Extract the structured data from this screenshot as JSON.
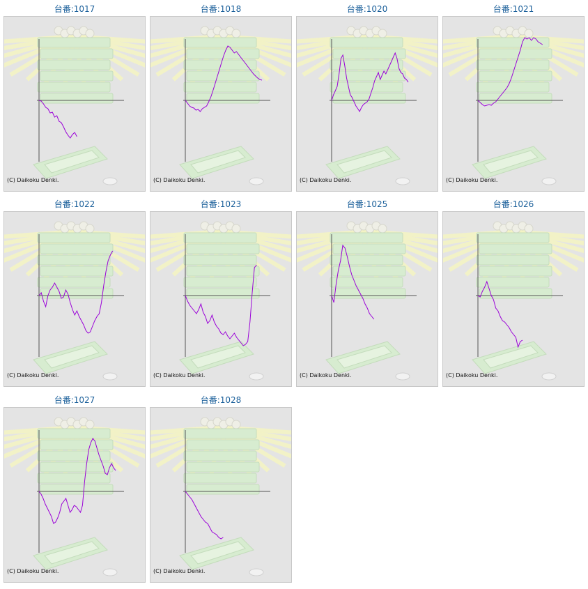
{
  "copyright": "(C) Daikoku Denki.",
  "colors": {
    "title": "#1a5f9a",
    "line": "#9a00d8",
    "axis": "#555555",
    "background": "#e4e4e4",
    "machine": "#d7ecd0",
    "rays": "#f4f4c4"
  },
  "chart_data": [
    {
      "type": "line",
      "title": "台番:1017",
      "values": [
        0,
        -1,
        -5,
        -10,
        -12,
        -18,
        -17,
        -24,
        -22,
        -30,
        -32,
        -38,
        -45,
        -50,
        -54,
        -49,
        -46,
        -52
      ]
    },
    {
      "type": "line",
      "title": "台番:1018",
      "values": [
        0,
        -4,
        -8,
        -10,
        -11,
        -14,
        -13,
        -16,
        -12,
        -10,
        -8,
        -2,
        5,
        14,
        24,
        34,
        44,
        54,
        64,
        72,
        78,
        76,
        72,
        68,
        70,
        66,
        62,
        58,
        54,
        50,
        46,
        42,
        38,
        35,
        32,
        30,
        29
      ]
    },
    {
      "type": "line",
      "title": "台番:1020",
      "values": [
        0,
        8,
        14,
        20,
        38,
        60,
        65,
        50,
        32,
        20,
        8,
        4,
        -2,
        -8,
        -12,
        -16,
        -10,
        -6,
        -4,
        -2,
        2,
        10,
        18,
        28,
        34,
        40,
        30,
        36,
        42,
        38,
        44,
        50,
        56,
        62,
        68,
        60,
        46,
        40,
        38,
        32,
        30,
        26
      ]
    },
    {
      "type": "line",
      "title": "台番:1021",
      "values": [
        0,
        -3,
        -6,
        -8,
        -7,
        -6,
        -7,
        -4,
        -2,
        2,
        6,
        10,
        14,
        18,
        24,
        32,
        42,
        52,
        62,
        72,
        84,
        90,
        88,
        90,
        86,
        90,
        88,
        84,
        82,
        80
      ]
    },
    {
      "type": "line",
      "title": "台番:1022",
      "values": [
        0,
        4,
        -8,
        -16,
        0,
        8,
        12,
        18,
        12,
        6,
        -4,
        -2,
        8,
        2,
        -10,
        -20,
        -28,
        -22,
        -30,
        -36,
        -42,
        -50,
        -54,
        -52,
        -44,
        -36,
        -30,
        -26,
        -10,
        14,
        34,
        50,
        58,
        64
      ]
    },
    {
      "type": "line",
      "title": "台番:1023",
      "values": [
        0,
        -8,
        -14,
        -18,
        -22,
        -26,
        -20,
        -12,
        -24,
        -30,
        -40,
        -36,
        -28,
        -38,
        -44,
        -48,
        -54,
        -56,
        -52,
        -58,
        -62,
        -58,
        -54,
        -60,
        -64,
        -68,
        -72,
        -70,
        -66,
        -38,
        4,
        40,
        44
      ]
    },
    {
      "type": "line",
      "title": "台番:1025",
      "values": [
        0,
        -10,
        16,
        36,
        50,
        72,
        68,
        56,
        42,
        30,
        22,
        14,
        8,
        2,
        -4,
        -12,
        -18,
        -26,
        -30,
        -34
      ]
    },
    {
      "type": "line",
      "title": "台番:1026",
      "values": [
        0,
        -2,
        6,
        12,
        20,
        10,
        0,
        -6,
        -18,
        -22,
        -30,
        -36,
        -38,
        -42,
        -46,
        -52,
        -56,
        -60,
        -74,
        -66,
        -64
      ]
    },
    {
      "type": "line",
      "title": "台番:1027",
      "values": [
        0,
        -4,
        -10,
        -18,
        -24,
        -30,
        -36,
        -46,
        -44,
        -38,
        -30,
        -18,
        -14,
        -10,
        -20,
        -30,
        -26,
        -20,
        -22,
        -26,
        -30,
        -20,
        14,
        40,
        60,
        70,
        76,
        72,
        62,
        52,
        44,
        36,
        26,
        24,
        34,
        40,
        34,
        30
      ]
    },
    {
      "type": "line",
      "title": "台番:1028",
      "values": [
        0,
        -4,
        -8,
        -12,
        -18,
        -24,
        -30,
        -36,
        -40,
        -44,
        -46,
        -52,
        -58,
        -60,
        -62,
        -66,
        -68,
        -66
      ]
    }
  ]
}
